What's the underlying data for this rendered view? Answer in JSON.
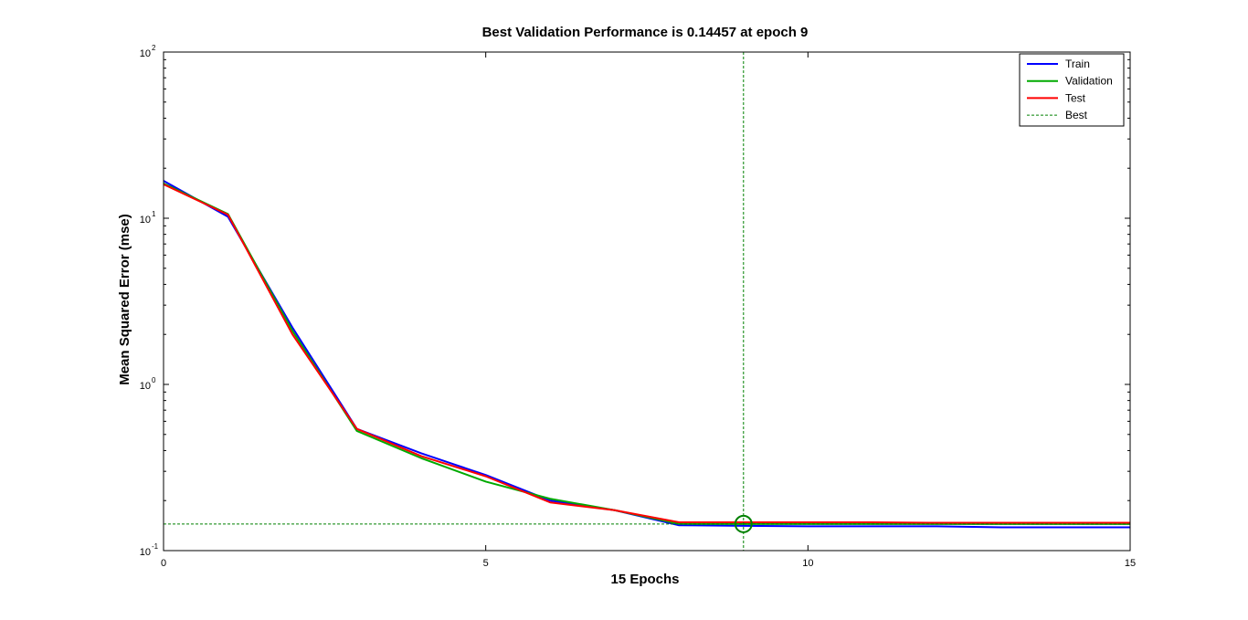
{
  "chart_data": {
    "type": "line",
    "title": "Best Validation Performance is 0.14457 at epoch 9",
    "xlabel": "15 Epochs",
    "ylabel": "Mean Squared Error  (mse)",
    "xlim": [
      0,
      15
    ],
    "ylim": [
      0.1,
      100
    ],
    "yscale": "log",
    "grid": false,
    "legend_position": "top-right",
    "x_ticks": [
      0,
      5,
      10,
      15
    ],
    "y_ticks": [
      {
        "value": 0.1,
        "base": "10",
        "exp": "-1"
      },
      {
        "value": 1,
        "base": "10",
        "exp": "0"
      },
      {
        "value": 10,
        "base": "10",
        "exp": "1"
      },
      {
        "value": 100,
        "base": "10",
        "exp": "2"
      }
    ],
    "x": [
      0,
      1,
      2,
      3,
      4,
      5,
      6,
      7,
      8,
      9,
      10,
      11,
      12,
      13,
      14,
      15
    ],
    "series": [
      {
        "name": "Train",
        "color": "#0000ff",
        "values": [
          16.8,
          10.2,
          2.2,
          0.54,
          0.385,
          0.285,
          0.2,
          0.175,
          0.142,
          0.141,
          0.14,
          0.14,
          0.14,
          0.138,
          0.138,
          0.138
        ]
      },
      {
        "name": "Validation",
        "color": "#00aa00",
        "values": [
          16.2,
          10.6,
          2.1,
          0.525,
          0.36,
          0.26,
          0.205,
          0.175,
          0.145,
          0.14457,
          0.1445,
          0.1445,
          0.1445,
          0.1445,
          0.1445,
          0.1445
        ]
      },
      {
        "name": "Test",
        "color": "#ff0000",
        "values": [
          16.0,
          10.5,
          2.0,
          0.54,
          0.37,
          0.28,
          0.195,
          0.175,
          0.148,
          0.148,
          0.148,
          0.148,
          0.147,
          0.147,
          0.147,
          0.147
        ]
      }
    ],
    "best": {
      "name": "Best",
      "epoch": 9,
      "value": 0.14457,
      "color": "#008000"
    }
  }
}
